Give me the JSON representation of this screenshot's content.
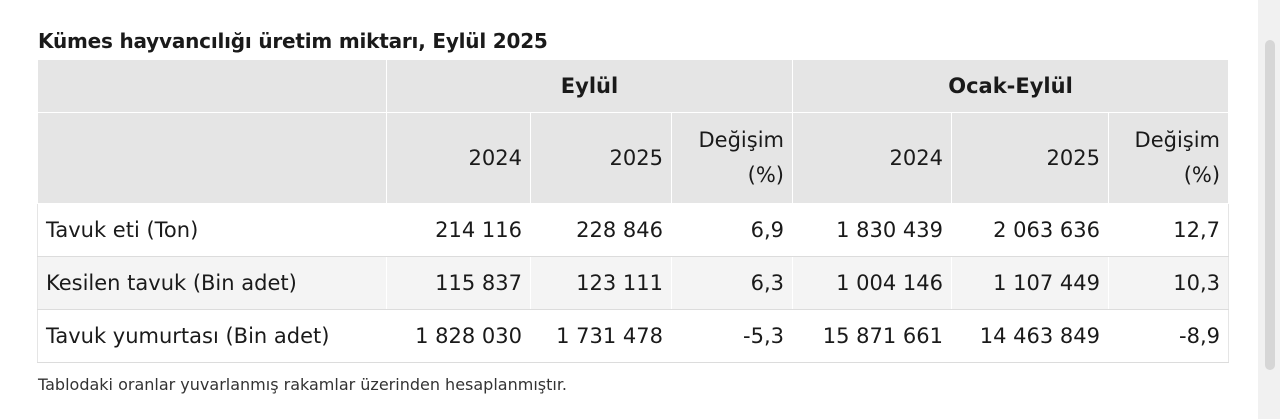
{
  "title": "Kümes hayvancılığı üretim miktarı, Eylül 2025",
  "header": {
    "group_1": "Eylül",
    "group_2": "Ocak-Eylül",
    "year_prev": "2024",
    "year_curr": "2025",
    "change_line1": "Değişim",
    "change_line2": "(%)"
  },
  "rows": [
    {
      "label": "Tavuk eti (Ton)",
      "m_2024": "214 116",
      "m_2025": "228 846",
      "m_change": "6,9",
      "ytd_2024": "1 830 439",
      "ytd_2025": "2 063 636",
      "ytd_change": "12,7"
    },
    {
      "label": "Kesilen tavuk (Bin adet)",
      "m_2024": "115 837",
      "m_2025": "123 111",
      "m_change": "6,3",
      "ytd_2024": "1 004 146",
      "ytd_2025": "1 107 449",
      "ytd_change": "10,3"
    },
    {
      "label": "Tavuk yumurtası (Bin adet)",
      "m_2024": "1 828 030",
      "m_2025": "1 731 478",
      "m_change": "-5,3",
      "ytd_2024": "15 871 661",
      "ytd_2025": "14 463 849",
      "ytd_change": "-8,9"
    }
  ],
  "note": "Tablodaki oranlar yuvarlanmış rakamlar üzerinden hesaplanmıştır."
}
